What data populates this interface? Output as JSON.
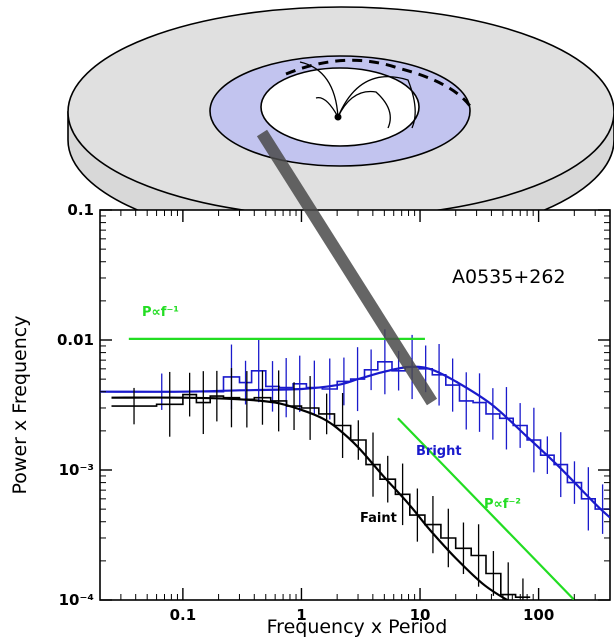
{
  "chart_data": {
    "type": "line",
    "title": "",
    "xlabel": "Frequency x Period",
    "ylabel": "Power x Frequency",
    "xscale": "log",
    "yscale": "log",
    "xlim": [
      0.02,
      400
    ],
    "ylim": [
      0.0001,
      0.1
    ],
    "x_ticks": [
      0.1,
      1,
      10,
      100
    ],
    "x_tick_labels": [
      "0.1",
      "1",
      "10",
      "100"
    ],
    "y_ticks": [
      0.0001,
      0.001,
      0.01,
      0.1
    ],
    "y_tick_labels": [
      "10⁻⁴",
      "10⁻³",
      "0.01",
      "0.1"
    ],
    "annotation": "A0535+262",
    "series": [
      {
        "name": "Bright",
        "color": "#1a1acc",
        "histogram_edges": [
          0.02,
          0.22,
          0.3,
          0.38,
          0.5,
          0.65,
          0.85,
          1.1,
          1.5,
          2.0,
          2.6,
          3.4,
          4.4,
          5.8,
          7.5,
          9.8,
          12.7,
          16.5,
          21.5,
          28,
          36,
          47,
          61,
          80,
          104,
          135,
          175,
          230,
          300,
          400
        ],
        "histogram_values": [
          0.004,
          0.0052,
          0.0047,
          0.0058,
          0.0044,
          0.0043,
          0.0046,
          0.0043,
          0.0042,
          0.0048,
          0.005,
          0.0059,
          0.0068,
          0.0058,
          0.0062,
          0.006,
          0.0054,
          0.0045,
          0.0034,
          0.0033,
          0.0027,
          0.0025,
          0.0022,
          0.0017,
          0.0013,
          0.0011,
          0.0008,
          0.0006,
          0.0005
        ],
        "model_x": [
          0.02,
          0.1,
          0.3,
          1,
          2,
          3,
          5,
          8,
          12,
          20,
          40,
          80,
          150,
          300,
          400
        ],
        "model_y": [
          0.004,
          0.004,
          0.0041,
          0.0042,
          0.0045,
          0.005,
          0.0057,
          0.0062,
          0.006,
          0.0048,
          0.0032,
          0.0018,
          0.00105,
          0.00055,
          0.00043
        ]
      },
      {
        "name": "Faint",
        "color": "#000000",
        "histogram_edges": [
          0.025,
          0.06,
          0.1,
          0.13,
          0.17,
          0.22,
          0.3,
          0.4,
          0.55,
          0.75,
          1.0,
          1.4,
          1.9,
          2.6,
          3.5,
          4.6,
          6.2,
          8.2,
          11,
          15,
          20,
          27,
          36,
          48,
          64,
          85
        ],
        "histogram_values": [
          0.0031,
          0.0032,
          0.0038,
          0.0033,
          0.0037,
          0.0036,
          0.0035,
          0.0036,
          0.0034,
          0.0031,
          0.003,
          0.0027,
          0.0022,
          0.0017,
          0.0011,
          0.00085,
          0.00065,
          0.00045,
          0.00038,
          0.0003,
          0.00025,
          0.00022,
          0.00016,
          0.00011,
          0.000105
        ],
        "model_x": [
          0.025,
          0.1,
          0.3,
          0.6,
          1,
          1.5,
          2,
          3,
          5,
          8,
          12,
          20,
          35,
          60,
          85
        ],
        "model_y": [
          0.0036,
          0.0036,
          0.0035,
          0.0033,
          0.0029,
          0.0025,
          0.0021,
          0.0015,
          0.00088,
          0.00055,
          0.00035,
          0.00021,
          0.00013,
          9.5e-05,
          8.2e-05
        ]
      },
      {
        "name": "P∝f⁻¹",
        "color": "#22dd22",
        "x": [
          0.035,
          11
        ],
        "y": [
          0.0102,
          0.0102
        ]
      },
      {
        "name": "P∝f⁻²",
        "color": "#22dd22",
        "x": [
          6.5,
          200
        ],
        "y": [
          0.0025,
          0.0001
        ]
      }
    ],
    "legend": "inline labels"
  }
}
